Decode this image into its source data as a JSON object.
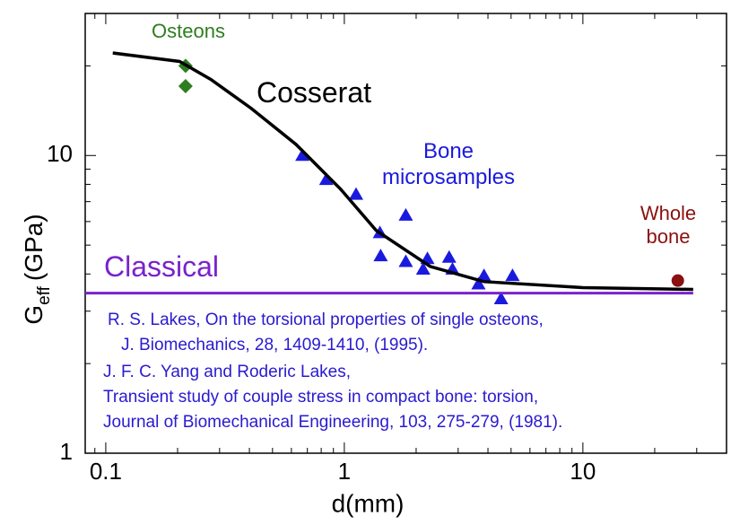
{
  "chart_data": {
    "type": "scatter",
    "xlabel": "d(mm)",
    "ylabel": {
      "main": "G",
      "sub": "eff",
      "unit": "(GPa)"
    },
    "xscale": "log",
    "yscale": "log",
    "xlim": [
      0.082,
      40
    ],
    "ylim": [
      1,
      30
    ],
    "xticks": [
      0.1,
      1,
      10
    ],
    "yticks": [
      1,
      10
    ],
    "series": [
      {
        "name": "Osteons",
        "color": "#2e7d1f",
        "marker": "diamond",
        "x": [
          0.216,
          0.216
        ],
        "values": [
          20,
          17.1
        ]
      },
      {
        "name": "Bone microsamples",
        "color": "#1a1adf",
        "marker": "triangle",
        "x": [
          0.667,
          0.84,
          1.12,
          1.81,
          1.41,
          1.42,
          1.81,
          2.23,
          2.14,
          2.75,
          2.84,
          3.85,
          3.65,
          4.54,
          5.07
        ],
        "values": [
          10,
          8.3,
          7.4,
          6.3,
          5.5,
          4.6,
          4.4,
          4.5,
          4.15,
          4.55,
          4.15,
          3.95,
          3.7,
          3.3,
          3.95
        ]
      },
      {
        "name": "Whole bone",
        "color": "#8b1010",
        "marker": "circle",
        "x": [
          25
        ],
        "values": [
          3.8
        ]
      },
      {
        "name": "Cosserat",
        "color": "#000000",
        "marker": "line",
        "x": [
          0.107,
          0.204,
          0.276,
          0.407,
          0.627,
          0.966,
          1.36,
          2.29,
          3.85,
          10,
          29
        ],
        "values": [
          22.1,
          20.7,
          18,
          14.4,
          10.9,
          7.7,
          5.6,
          4.24,
          3.77,
          3.6,
          3.55
        ]
      },
      {
        "name": "Classical",
        "color": "#7a22cc",
        "marker": "line",
        "x": [
          0.082,
          29
        ],
        "values": [
          3.45,
          3.45
        ]
      }
    ],
    "notes": [
      "R. S. Lakes, On the torsional properties of single osteons,",
      "J. Biomechanics, 28, 1409-1410, (1995).",
      "J. F. C. Yang and Roderic Lakes,",
      "Transient study of couple stress in compact bone: torsion,",
      "Journal of Biomechanical Engineering, 103, 275-279, (1981)."
    ]
  }
}
